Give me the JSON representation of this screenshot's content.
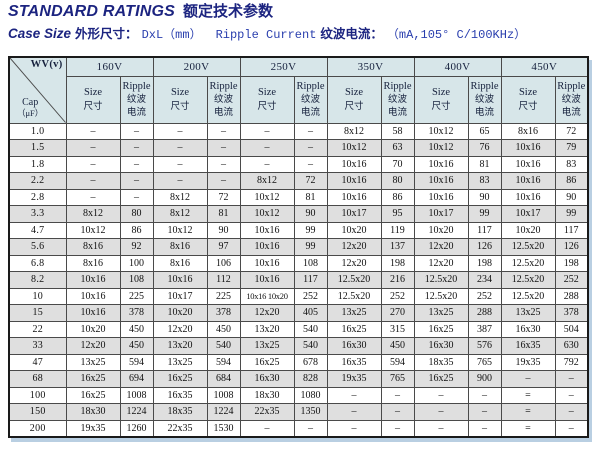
{
  "header": {
    "title_en": "STANDARD RATINGS",
    "title_zh": "额定技术参数",
    "case_size_en": "Case Size",
    "case_size_zh": "外形尺寸：",
    "case_size_val": "DxL（mm）",
    "ripple_en": "Ripple Current",
    "ripple_zh": "纹波电流：",
    "ripple_val": "（mA,105° C/100KHz）"
  },
  "table": {
    "corner_wv": "WV(v)",
    "corner_cap": "Cap",
    "corner_cap_unit": "（μF）",
    "voltages": [
      "160V",
      "200V",
      "250V",
      "350V",
      "400V",
      "450V"
    ],
    "sub": {
      "size_en": "Size",
      "size_zh": "尺寸",
      "ripple_en": "Ripple",
      "ripple_zh1": "纹波",
      "ripple_zh2": "电流"
    },
    "columns_meaning": [
      "Size DxL(mm)",
      "Ripple Current mA"
    ],
    "rows": [
      {
        "cap": "1.0",
        "cells": [
          "–",
          "–",
          "–",
          "–",
          "–",
          "–",
          "8x12",
          "58",
          "10x12",
          "65",
          "8x16",
          "72"
        ]
      },
      {
        "cap": "1.5",
        "cells": [
          "–",
          "–",
          "–",
          "–",
          "–",
          "–",
          "10x12",
          "63",
          "10x12",
          "76",
          "10x16",
          "79"
        ]
      },
      {
        "cap": "1.8",
        "cells": [
          "–",
          "–",
          "–",
          "–",
          "–",
          "–",
          "10x16",
          "70",
          "10x16",
          "81",
          "10x16",
          "83"
        ]
      },
      {
        "cap": "2.2",
        "cells": [
          "–",
          "–",
          "–",
          "–",
          "8x12",
          "72",
          "10x16",
          "80",
          "10x16",
          "83",
          "10x16",
          "86"
        ]
      },
      {
        "cap": "2.8",
        "cells": [
          "–",
          "–",
          "8x12",
          "72",
          "10x12",
          "81",
          "10x16",
          "86",
          "10x16",
          "90",
          "10x16",
          "90"
        ]
      },
      {
        "cap": "3.3",
        "cells": [
          "8x12",
          "80",
          "8x12",
          "81",
          "10x12",
          "90",
          "10x17",
          "95",
          "10x17",
          "99",
          "10x17",
          "99"
        ]
      },
      {
        "cap": "4.7",
        "cells": [
          "10x12",
          "86",
          "10x12",
          "90",
          "10x16",
          "99",
          "10x20",
          "119",
          "10x20",
          "117",
          "10x20",
          "117"
        ]
      },
      {
        "cap": "5.6",
        "cells": [
          "8x16",
          "92",
          "8x16",
          "97",
          "10x16",
          "99",
          "12x20",
          "137",
          "12x20",
          "126",
          "12.5x20",
          "126"
        ]
      },
      {
        "cap": "6.8",
        "cells": [
          "8x16",
          "100",
          "8x16",
          "106",
          "10x16",
          "108",
          "12x20",
          "198",
          "12x20",
          "198",
          "12.5x20",
          "198"
        ]
      },
      {
        "cap": "8.2",
        "cells": [
          "10x16",
          "108",
          "10x16",
          "112",
          "10x16",
          "117",
          "12.5x20",
          "216",
          "12.5x20",
          "234",
          "12.5x20",
          "252"
        ]
      },
      {
        "cap": "10",
        "cells": [
          "10x16",
          "225",
          "10x17",
          "225",
          "10x16 10x20",
          "252",
          "12.5x20",
          "252",
          "12.5x20",
          "252",
          "12.5x20",
          "288"
        ]
      },
      {
        "cap": "15",
        "cells": [
          "10x16",
          "378",
          "10x20",
          "378",
          "12x20",
          "405",
          "13x25",
          "270",
          "13x25",
          "288",
          "13x25",
          "378"
        ]
      },
      {
        "cap": "22",
        "cells": [
          "10x20",
          "450",
          "12x20",
          "450",
          "13x20",
          "540",
          "16x25",
          "315",
          "16x25",
          "387",
          "16x30",
          "504"
        ]
      },
      {
        "cap": "33",
        "cells": [
          "12x20",
          "450",
          "13x20",
          "540",
          "13x25",
          "540",
          "16x30",
          "450",
          "16x30",
          "576",
          "16x35",
          "630"
        ]
      },
      {
        "cap": "47",
        "cells": [
          "13x25",
          "594",
          "13x25",
          "594",
          "16x25",
          "678",
          "16x35",
          "594",
          "18x35",
          "765",
          "19x35",
          "792"
        ]
      },
      {
        "cap": "68",
        "cells": [
          "16x25",
          "694",
          "16x25",
          "684",
          "16x30",
          "828",
          "19x35",
          "765",
          "16x25",
          "900",
          "–",
          "–"
        ]
      },
      {
        "cap": "100",
        "cells": [
          "16x25",
          "1008",
          "16x35",
          "1008",
          "18x30",
          "1080",
          "–",
          "–",
          "–",
          "–",
          "=",
          "–"
        ]
      },
      {
        "cap": "150",
        "cells": [
          "18x30",
          "1224",
          "18x35",
          "1224",
          "22x35",
          "1350",
          "–",
          "–",
          "–",
          "–",
          "=",
          "–"
        ]
      },
      {
        "cap": "200",
        "cells": [
          "19x35",
          "1260",
          "22x35",
          "1530",
          "–",
          "–",
          "–",
          "–",
          "–",
          "–",
          "=",
          "–"
        ]
      }
    ]
  },
  "colors": {
    "title_navy": "#1c2480",
    "subtitle_blue": "#2a3fae",
    "header_bg": "#d7e6e9",
    "alt_row_bg": "#dfdfdf",
    "border": "#4a4a4a",
    "shadow_blue": "#b9cfe2"
  }
}
